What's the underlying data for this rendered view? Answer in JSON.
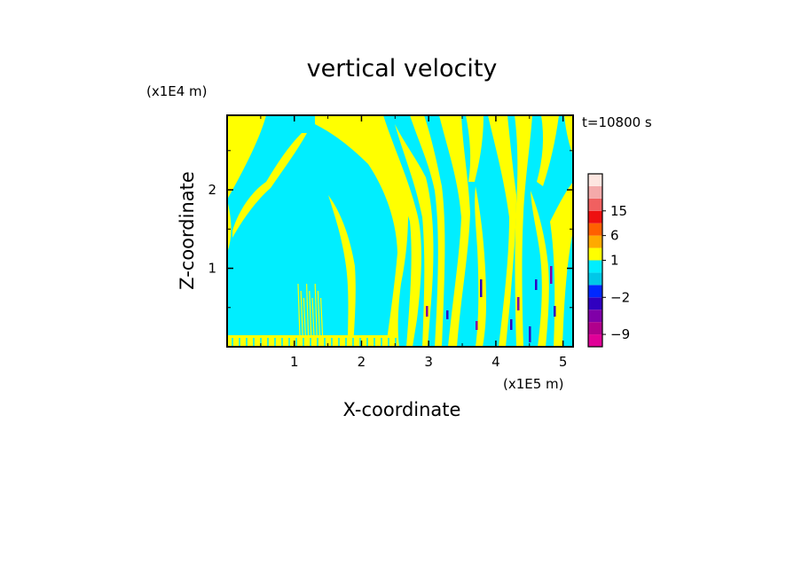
{
  "chart_data": {
    "type": "heatmap",
    "title": "vertical velocity",
    "xlabel": "X-coordinate",
    "ylabel": "Z-coordinate",
    "x_unit": "(x1E5 m)",
    "y_unit": "(x1E4 m)",
    "time_label": "t=10800 s",
    "xlim": [
      0,
      5.15
    ],
    "ylim": [
      0,
      2.95
    ],
    "x_ticks": [
      1,
      2,
      3,
      4,
      5
    ],
    "y_ticks": [
      1,
      2
    ],
    "x_tick_labels": [
      "1",
      "2",
      "3",
      "4",
      "5"
    ],
    "y_tick_labels": [
      "1",
      "2"
    ],
    "colorbar": {
      "levels": [
        -12,
        -9,
        -6,
        -4,
        -2,
        -1,
        0,
        1,
        3,
        6,
        10,
        15,
        20,
        25
      ],
      "colors": [
        "#e00098",
        "#b0008c",
        "#8000a8",
        "#3000c0",
        "#0028ff",
        "#00c8e8",
        "#00eeff",
        "#ffff00",
        "#ffaa00",
        "#ff6000",
        "#ee1010",
        "#f06060",
        "#f4aaaa",
        "#fde6e0"
      ],
      "labels": [
        {
          "text": "15",
          "level": 15
        },
        {
          "text": "6",
          "level": 6
        },
        {
          "text": "1",
          "level": 1
        },
        {
          "text": "−2",
          "level": -2
        },
        {
          "text": "−9",
          "level": -9
        }
      ]
    },
    "field_colors": {
      "positive": "#ffff00",
      "negative": "#00eeff",
      "strong_down": "#3000c0",
      "stronger_down": "#8000a8"
    }
  }
}
